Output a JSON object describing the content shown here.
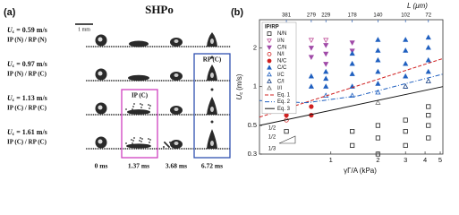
{
  "panel_a": {
    "label": "(a)",
    "title": "SHPo",
    "scale_bar": "1 mm",
    "speed_symbol": "U",
    "speed_subscript": "c",
    "rows": [
      {
        "speed": "= 0.59 m/s",
        "regime": "IP (N) / RP (N)"
      },
      {
        "speed": "= 0.97 m/s",
        "regime": "IP (N) / RP (C)"
      },
      {
        "speed": "= 1.13 m/s",
        "regime": "IP (C) / RP (C)"
      },
      {
        "speed": "= 1.61 m/s",
        "regime": "IP (C) / RP (C)"
      }
    ],
    "times": [
      "0 ms",
      "1.37 ms",
      "3.68 ms",
      "6.72 ms"
    ],
    "box_ip": "IP (C)",
    "box_rp": "RP (C)"
  },
  "chart_data": {
    "type": "scatter",
    "panel_label": "(b)",
    "xlabel": "γΓ/A (kPa)",
    "ylabel": {
      "symbol": "U",
      "subscript": "c",
      "unit": "(m/s)"
    },
    "x2label": "L (μm)",
    "log_x": true,
    "log_y": true,
    "xlim": [
      0.35,
      5.2
    ],
    "xticks": [
      1,
      2,
      3,
      4,
      5
    ],
    "ylim": [
      0.3,
      3.3
    ],
    "yticks": [
      0.3,
      0.5,
      1,
      2
    ],
    "x2ticks": [
      {
        "value": 0.52,
        "label": "381"
      },
      {
        "value": 0.75,
        "label": "279"
      },
      {
        "value": 0.93,
        "label": "229"
      },
      {
        "value": 1.37,
        "label": "178"
      },
      {
        "value": 2.0,
        "label": "140"
      },
      {
        "value": 3.0,
        "label": "102"
      },
      {
        "value": 4.2,
        "label": "72"
      }
    ],
    "legend_title": "IP/RP",
    "series": [
      {
        "name": "N/N",
        "marker": "square",
        "filled": false,
        "color": "#222222",
        "x": [
          0.52,
          1.37,
          1.37,
          2.0,
          2.0,
          2.0,
          3.0,
          3.0,
          3.0,
          4.2,
          4.2,
          4.2,
          4.2
        ],
        "y": [
          0.45,
          0.35,
          0.45,
          0.3,
          0.4,
          0.5,
          0.35,
          0.45,
          0.55,
          0.4,
          0.5,
          0.6,
          0.7
        ]
      },
      {
        "name": "I/N",
        "marker": "tri-down",
        "filled": false,
        "color": "#c0509a",
        "x": [
          0.75,
          0.93
        ],
        "y": [
          2.3,
          2.3
        ]
      },
      {
        "name": "C/N",
        "marker": "tri-down",
        "filled": true,
        "color": "#a04aa8",
        "x": [
          0.75,
          0.75,
          0.93,
          0.93,
          0.93,
          1.37,
          1.37
        ],
        "y": [
          1.7,
          2.0,
          1.5,
          1.8,
          2.1,
          1.9,
          2.2
        ]
      },
      {
        "name": "N/I",
        "marker": "circle",
        "filled": false,
        "color": "#d02020",
        "x": [
          0.52
        ],
        "y": [
          0.55
        ]
      },
      {
        "name": "N/C",
        "marker": "circle",
        "filled": true,
        "color": "#d02020",
        "x": [
          0.52,
          0.52,
          0.75,
          0.75
        ],
        "y": [
          0.6,
          0.7,
          0.6,
          0.7
        ]
      },
      {
        "name": "C/C",
        "marker": "tri-up",
        "filled": true,
        "color": "#2060c0",
        "x": [
          0.75,
          0.75,
          0.93,
          0.93,
          0.93,
          1.37,
          1.37,
          1.37,
          1.37,
          2.0,
          2.0,
          2.0,
          2.0,
          2.0,
          3.0,
          3.0,
          3.0,
          3.0,
          4.2,
          4.2,
          4.2,
          4.2
        ],
        "y": [
          1.0,
          1.2,
          1.0,
          1.15,
          1.3,
          1.0,
          1.25,
          1.5,
          1.8,
          1.05,
          1.3,
          1.6,
          1.9,
          2.3,
          1.2,
          1.5,
          1.9,
          2.3,
          1.3,
          1.6,
          2.0,
          2.4
        ]
      },
      {
        "name": "I/C",
        "marker": "tri-up",
        "filled": false,
        "color": "#2060c0",
        "x": [
          0.93,
          1.37,
          2.0
        ],
        "y": [
          0.85,
          0.85,
          0.9
        ]
      },
      {
        "name": "C/I",
        "marker": "tri-up",
        "filled": false,
        "color": "#113a80",
        "x": [
          3.0,
          4.2
        ],
        "y": [
          1.0,
          1.1
        ]
      },
      {
        "name": "I/I",
        "marker": "tri-up",
        "filled": false,
        "color": "#777777",
        "x": [
          2.0
        ],
        "y": [
          0.75
        ]
      },
      {
        "name": "Eq. 1",
        "marker": "line",
        "dash": "4 2",
        "color": "#d02020",
        "x": [
          0.35,
          5.2
        ],
        "y": [
          0.58,
          1.65
        ]
      },
      {
        "name": "Eq. 2",
        "marker": "line",
        "dash": "5 2 1 2",
        "color": "#2060c0",
        "x": [
          0.35,
          0.7,
          1.5,
          5.2
        ],
        "y": [
          0.78,
          0.75,
          0.85,
          1.25
        ]
      },
      {
        "name": "Eq. 3",
        "marker": "line",
        "dash": "",
        "color": "#111111",
        "x": [
          0.35,
          5.2
        ],
        "y": [
          0.5,
          1.0
        ]
      }
    ],
    "annotations": [
      "1/2",
      "1/2",
      "1/3"
    ]
  }
}
